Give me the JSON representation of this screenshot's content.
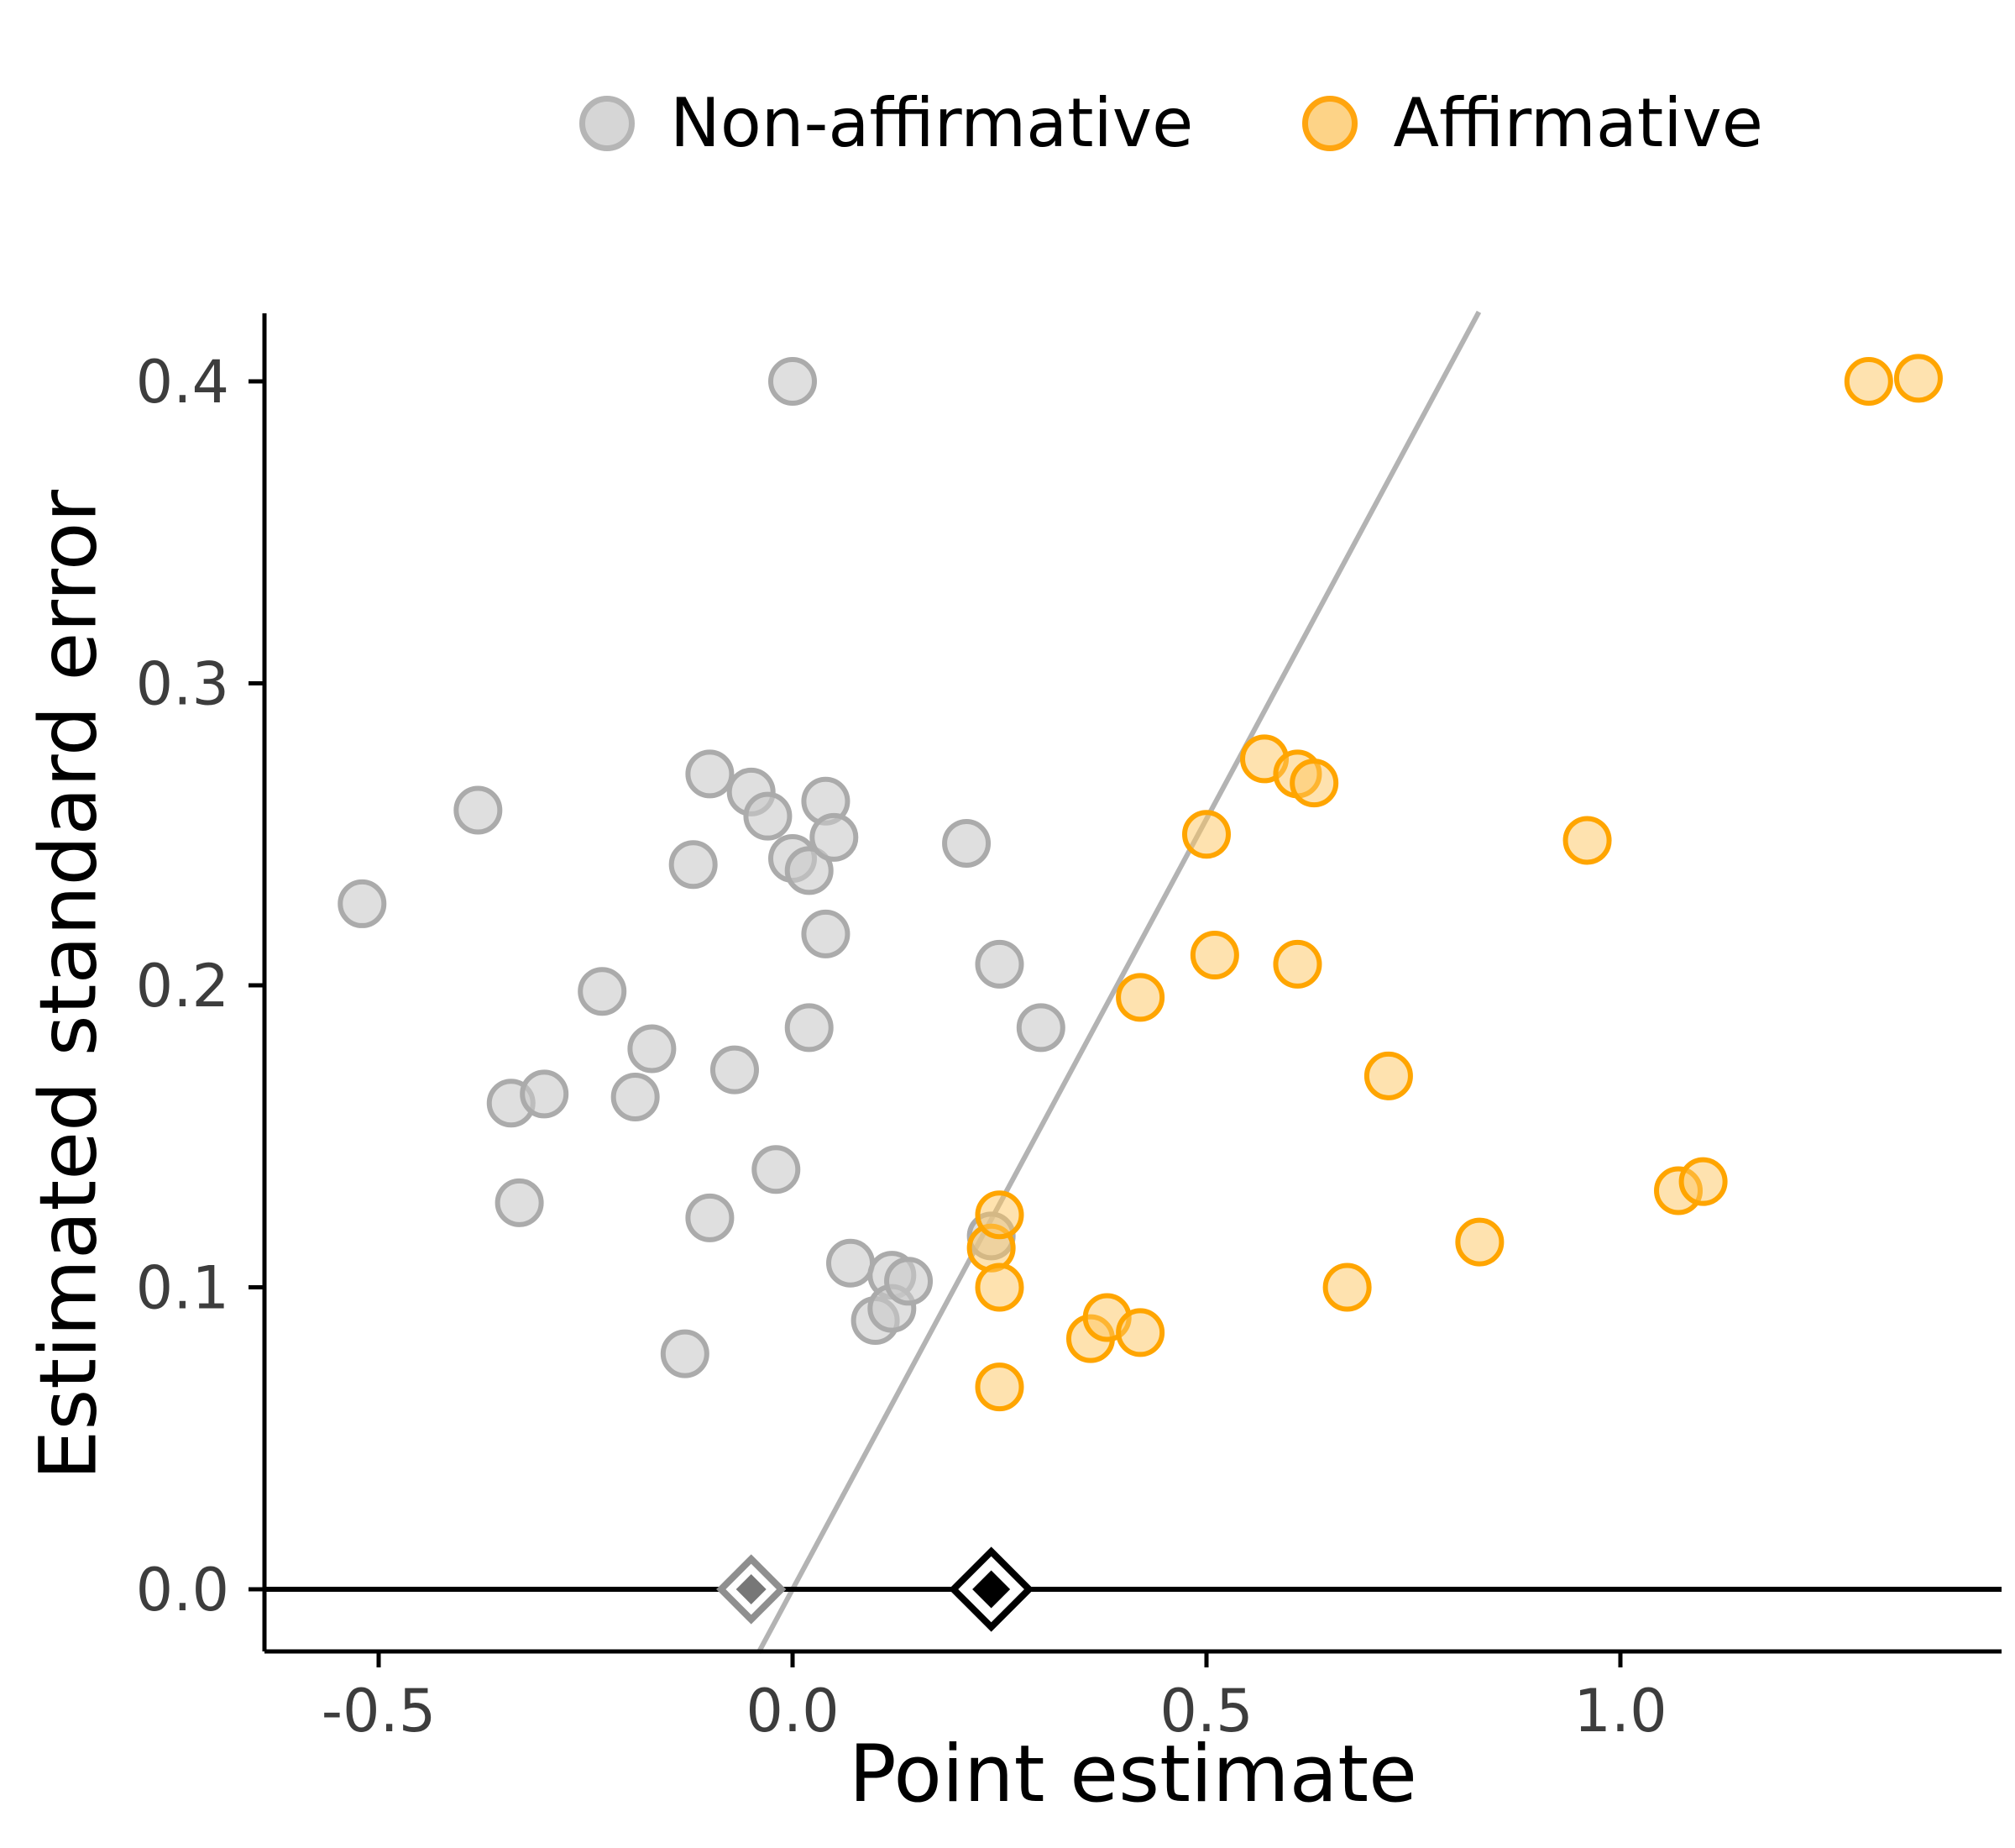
{
  "chart_data": {
    "type": "scatter",
    "title": "",
    "xlabel": "Point estimate",
    "ylabel": "Estimated standard error",
    "xlim": [
      -0.64,
      1.46
    ],
    "ylim": [
      -0.021,
      0.423
    ],
    "grid": false,
    "legend_position": "top",
    "x_tick_values": [
      -0.5,
      0.0,
      0.5,
      1.0
    ],
    "x_tick_labels": [
      "-0.5",
      "0.0",
      "0.5",
      "1.0"
    ],
    "y_tick_values": [
      0.0,
      0.1,
      0.2,
      0.3,
      0.4
    ],
    "y_tick_labels": [
      "0.0",
      "0.1",
      "0.2",
      "0.3",
      "0.4"
    ],
    "legend": [
      {
        "label": "Non-affirmative",
        "fill": "#d6d6d6",
        "stroke": "#b5b5b5"
      },
      {
        "label": "Affirmative",
        "fill": "#fdd387",
        "stroke": "#ffa50f"
      }
    ],
    "series": [
      {
        "name": "Non-affirmative",
        "fill": "#c9c9c9",
        "fill_opacity": 0.6,
        "stroke": "#ababab",
        "points": [
          [
            -0.52,
            0.227
          ],
          [
            -0.38,
            0.258
          ],
          [
            -0.34,
            0.161
          ],
          [
            -0.33,
            0.128
          ],
          [
            -0.3,
            0.164
          ],
          [
            -0.23,
            0.198
          ],
          [
            -0.19,
            0.163
          ],
          [
            -0.17,
            0.179
          ],
          [
            -0.13,
            0.078
          ],
          [
            -0.12,
            0.24
          ],
          [
            -0.1,
            0.27
          ],
          [
            -0.1,
            0.123
          ],
          [
            -0.07,
            0.172
          ],
          [
            -0.05,
            0.264
          ],
          [
            -0.03,
            0.256
          ],
          [
            -0.02,
            0.139
          ],
          [
            0.0,
            0.4
          ],
          [
            0.0,
            0.242
          ],
          [
            0.02,
            0.238
          ],
          [
            0.02,
            0.186
          ],
          [
            0.04,
            0.261
          ],
          [
            0.05,
            0.249
          ],
          [
            0.04,
            0.217
          ],
          [
            0.07,
            0.108
          ],
          [
            0.1,
            0.089
          ],
          [
            0.12,
            0.104
          ],
          [
            0.12,
            0.093
          ],
          [
            0.14,
            0.102
          ],
          [
            0.21,
            0.247
          ],
          [
            0.24,
            0.117
          ],
          [
            0.25,
            0.207
          ],
          [
            0.3,
            0.186
          ]
        ]
      },
      {
        "name": "Affirmative",
        "fill": "#fdc55f",
        "fill_opacity": 0.5,
        "stroke": "#ffa500",
        "points": [
          [
            0.24,
            0.113
          ],
          [
            0.25,
            0.124
          ],
          [
            0.25,
            0.1
          ],
          [
            0.25,
            0.067
          ],
          [
            0.36,
            0.083
          ],
          [
            0.38,
            0.09
          ],
          [
            0.42,
            0.085
          ],
          [
            0.42,
            0.196
          ],
          [
            0.5,
            0.25
          ],
          [
            0.51,
            0.21
          ],
          [
            0.57,
            0.275
          ],
          [
            0.61,
            0.27
          ],
          [
            0.63,
            0.267
          ],
          [
            0.61,
            0.207
          ],
          [
            0.67,
            0.1
          ],
          [
            0.72,
            0.17
          ],
          [
            0.83,
            0.115
          ],
          [
            0.96,
            0.248
          ],
          [
            1.07,
            0.132
          ],
          [
            1.1,
            0.135
          ],
          [
            1.3,
            0.4
          ],
          [
            1.36,
            0.401
          ]
        ]
      }
    ],
    "significance_line": {
      "slope": 0.5102,
      "intercept": 0.0,
      "color": "#b3b3b3"
    },
    "zero_line": {
      "y": 0.0,
      "color": "#000000"
    },
    "diamond_markers": [
      {
        "x": -0.05,
        "y": 0.0,
        "outline": "#8f8f8f",
        "fill": "#777777",
        "size": 36,
        "name": "non-affirmative-diamond"
      },
      {
        "x": 0.24,
        "y": 0.0,
        "outline": "#000000",
        "fill": "#000000",
        "size": 45,
        "name": "affirmative-diamond"
      }
    ],
    "colors": {
      "axis": "#000000",
      "tick_text": "#3d3d3d"
    }
  }
}
